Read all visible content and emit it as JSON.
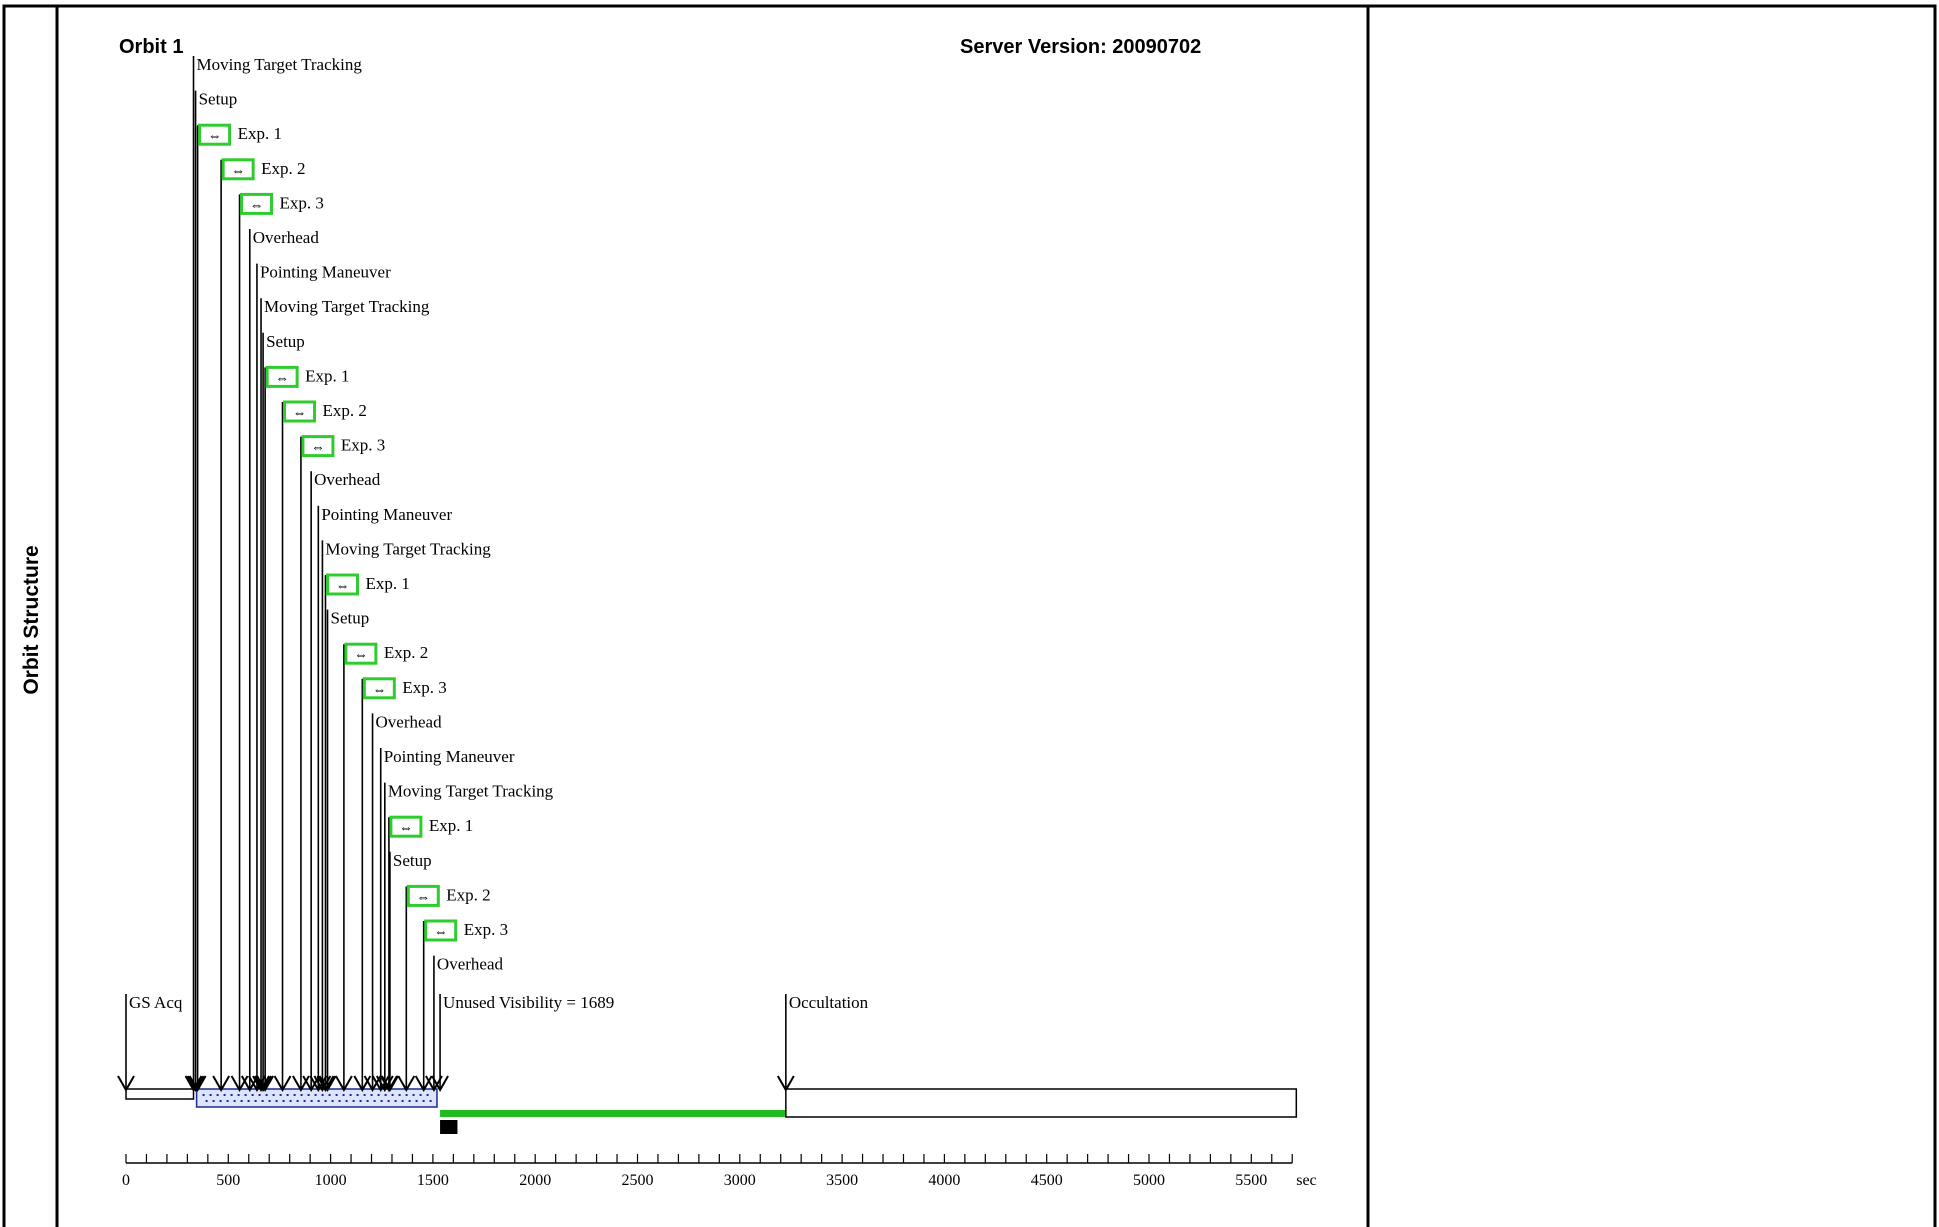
{
  "side_label": "Orbit Structure",
  "header": {
    "orbit_title": "Orbit 1",
    "server_version": "Server Version: 20090702"
  },
  "axis": {
    "unit": "sec",
    "tick_labels": [
      "0",
      "500",
      "1000",
      "1500",
      "2000",
      "2500",
      "3000",
      "3500",
      "4000",
      "4500",
      "5000",
      "5500"
    ],
    "max": 5700,
    "minor_step": 100
  },
  "events": [
    {
      "t": 0,
      "label": "GS Acq",
      "kind": "arrow"
    },
    {
      "t": 330,
      "label": "Moving Target Tracking",
      "kind": "line"
    },
    {
      "t": 340,
      "label": "Setup",
      "kind": "line"
    },
    {
      "t": 350,
      "label": "Exp. 1",
      "kind": "exp"
    },
    {
      "t": 465,
      "label": "Exp. 2",
      "kind": "exp"
    },
    {
      "t": 555,
      "label": "Exp. 3",
      "kind": "exp"
    },
    {
      "t": 605,
      "label": "Overhead",
      "kind": "line"
    },
    {
      "t": 640,
      "label": "Pointing Maneuver",
      "kind": "line"
    },
    {
      "t": 660,
      "label": "Moving Target Tracking",
      "kind": "line"
    },
    {
      "t": 670,
      "label": "Setup",
      "kind": "line"
    },
    {
      "t": 680,
      "label": "Exp. 1",
      "kind": "exp"
    },
    {
      "t": 765,
      "label": "Exp. 2",
      "kind": "exp"
    },
    {
      "t": 855,
      "label": "Exp. 3",
      "kind": "exp"
    },
    {
      "t": 905,
      "label": "Overhead",
      "kind": "line"
    },
    {
      "t": 940,
      "label": "Pointing Maneuver",
      "kind": "line"
    },
    {
      "t": 960,
      "label": "Moving Target Tracking",
      "kind": "line"
    },
    {
      "t": 975,
      "label": "Exp. 1",
      "kind": "exp"
    },
    {
      "t": 985,
      "label": "Setup",
      "kind": "line"
    },
    {
      "t": 1065,
      "label": "Exp. 2",
      "kind": "exp"
    },
    {
      "t": 1155,
      "label": "Exp. 3",
      "kind": "exp"
    },
    {
      "t": 1205,
      "label": "Overhead",
      "kind": "line"
    },
    {
      "t": 1245,
      "label": "Pointing Maneuver",
      "kind": "line"
    },
    {
      "t": 1265,
      "label": "Moving Target Tracking",
      "kind": "line"
    },
    {
      "t": 1285,
      "label": "Exp. 1",
      "kind": "exp"
    },
    {
      "t": 1290,
      "label": "Setup",
      "kind": "line"
    },
    {
      "t": 1370,
      "label": "Exp. 2",
      "kind": "exp"
    },
    {
      "t": 1455,
      "label": "Exp. 3",
      "kind": "exp"
    },
    {
      "t": 1505,
      "label": "Overhead",
      "kind": "line"
    },
    {
      "t": 1535,
      "label": "Unused Visibility = 1689",
      "kind": "arrow"
    },
    {
      "t": 3225,
      "label": "Occultation",
      "kind": "arrow"
    }
  ],
  "bars": {
    "gs_acq": [
      0,
      330
    ],
    "exposure_blocks": [
      [
        345,
        1520
      ]
    ],
    "unused_visibility": [
      1535,
      3225
    ],
    "occultation": [
      3225,
      5720
    ],
    "marker": [
      1535,
      1620
    ]
  },
  "colors": {
    "exp_box": "#2ecc2e",
    "unused": "#22bb22",
    "block_fill": "#dde4ff",
    "block_stroke": "#1a2a8a",
    "marker": "#000000",
    "line": "#000000"
  }
}
